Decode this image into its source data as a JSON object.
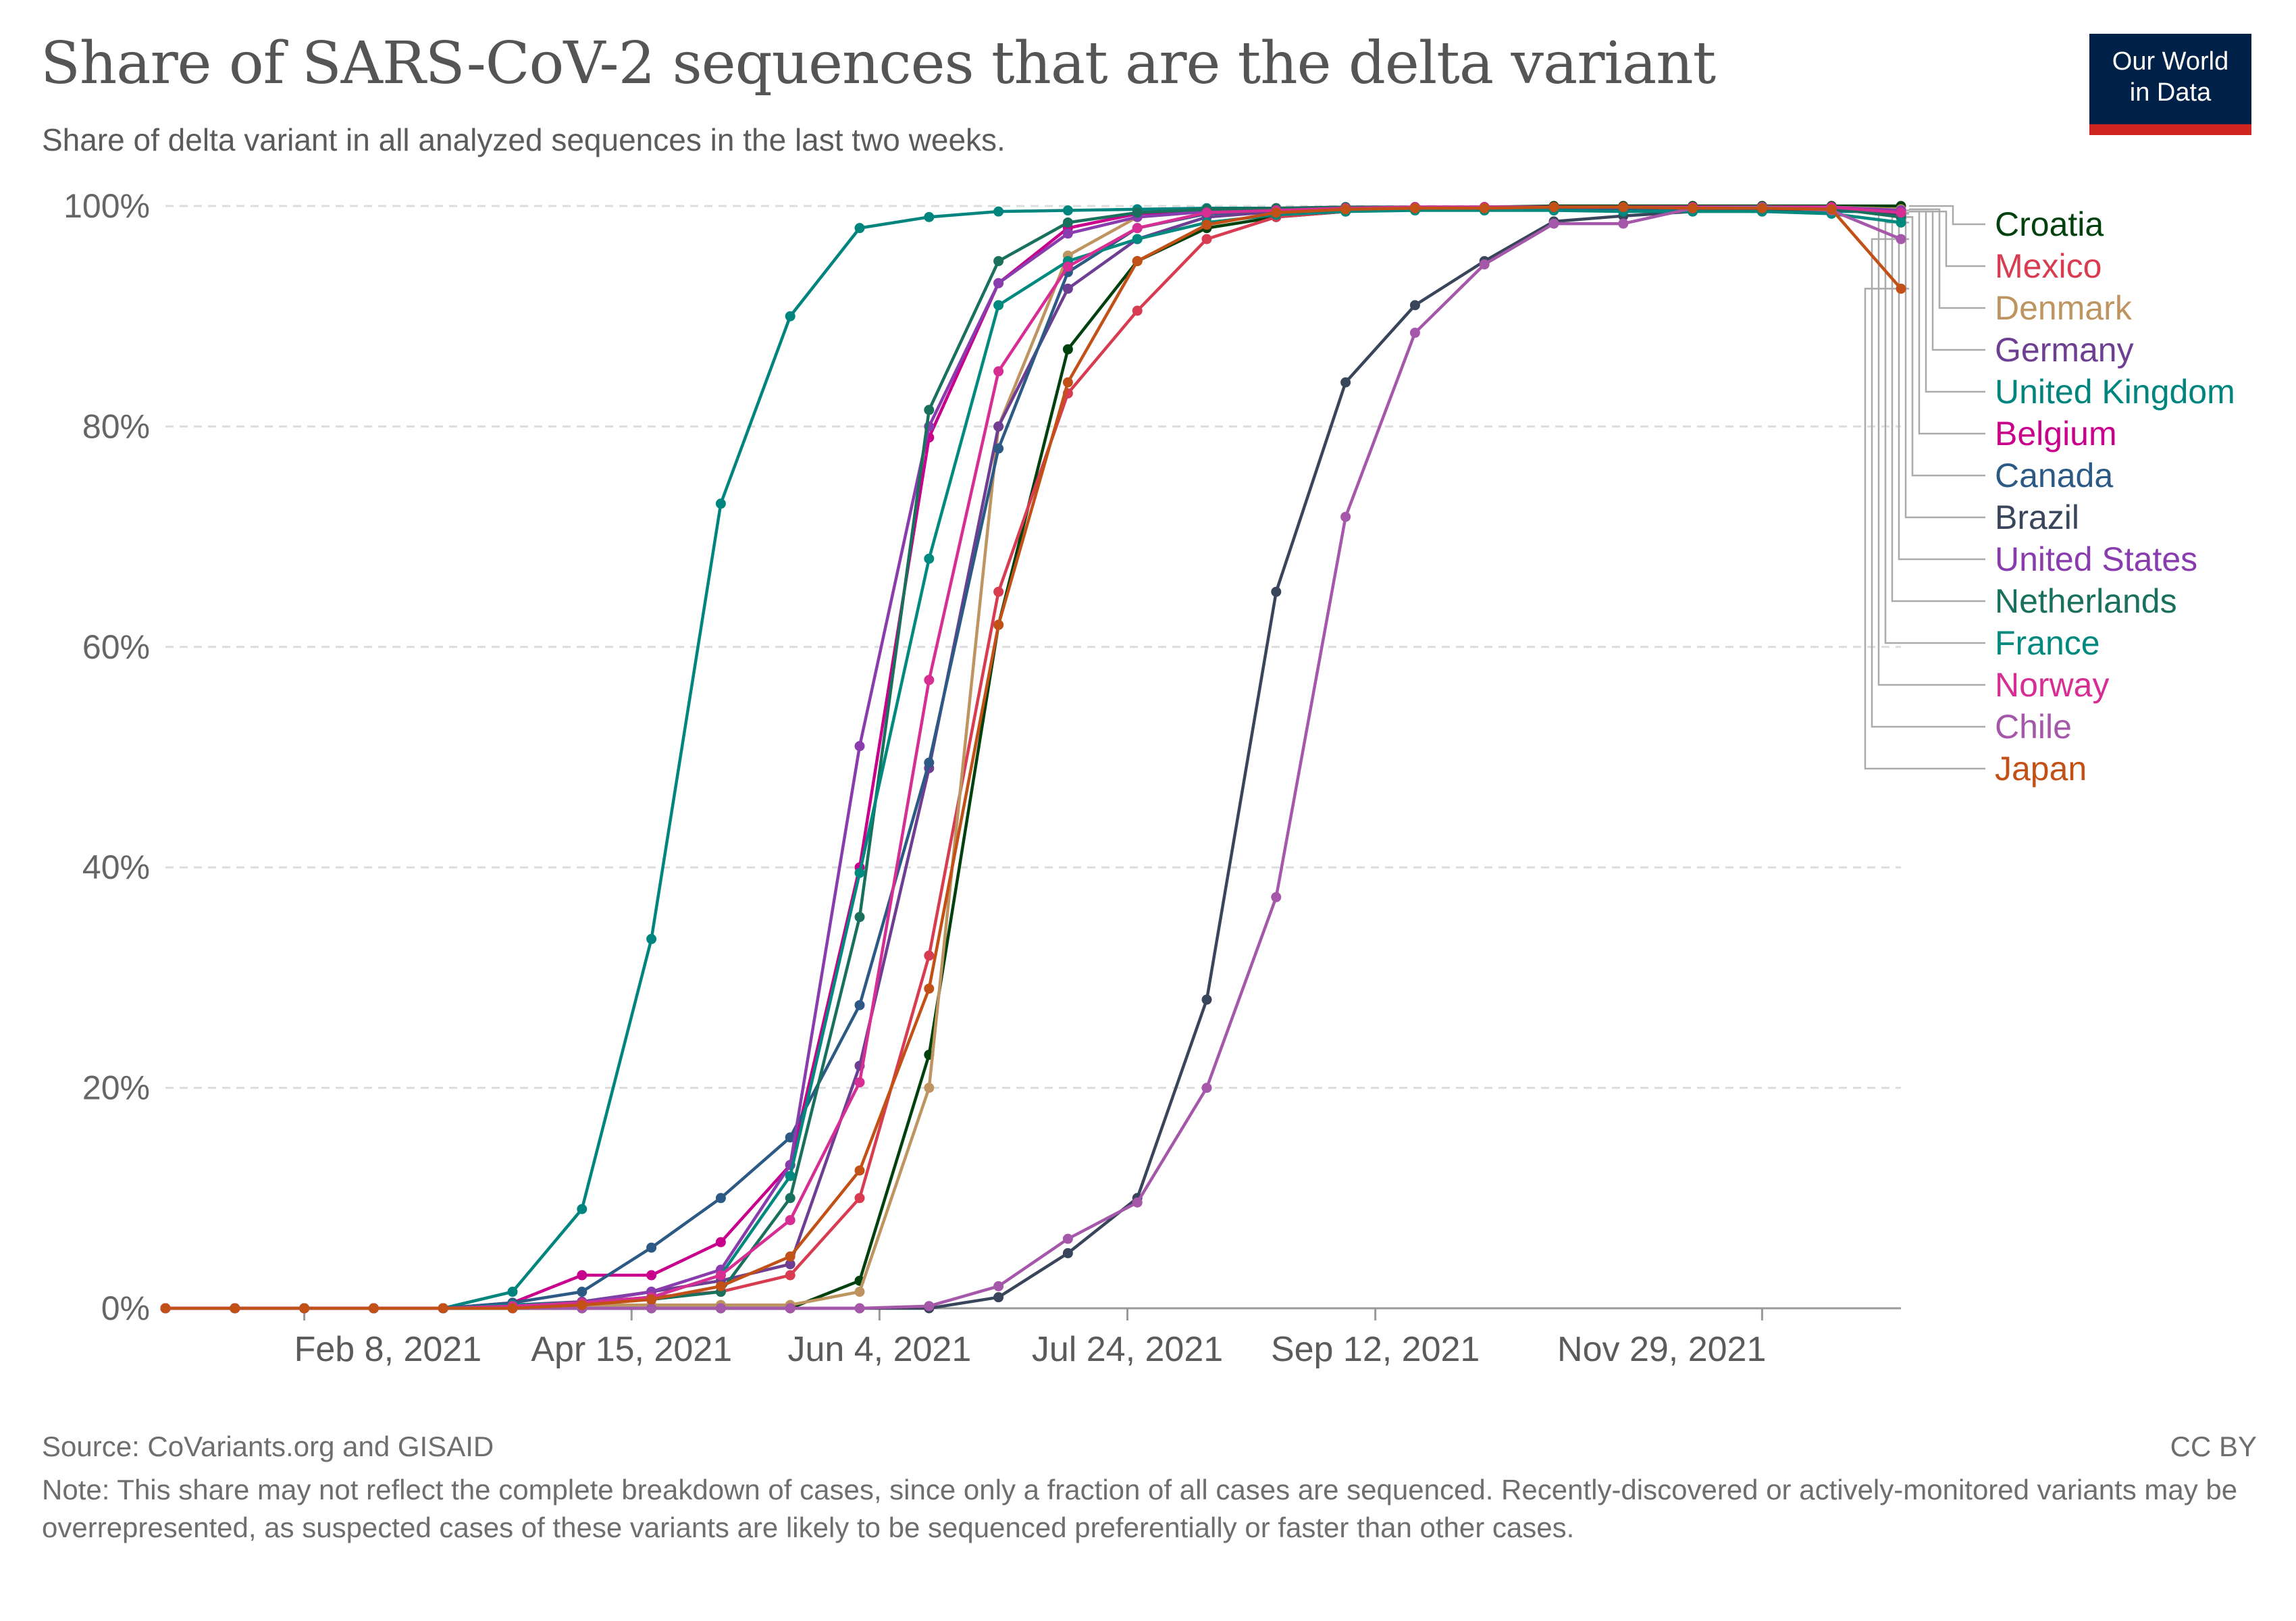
{
  "header": {
    "title": "Share of SARS-CoV-2 sequences that are the delta variant",
    "subtitle": "Share of delta variant in all analyzed sequences in the last two weeks.",
    "logo_line1": "Our World",
    "logo_line2": "in Data"
  },
  "footer": {
    "source": "Source: CoVariants.org and GISAID",
    "license": "CC BY",
    "note": "Note: This share may not reflect the complete breakdown of cases, since only a fraction of all cases are sequenced. Recently-discovered or actively-monitored variants may be overrepresented, as suspected cases of these variants are likely to be sequenced preferentially or faster than other cases."
  },
  "colors": {
    "grid": "#dddddd",
    "axis_text": "#666666",
    "logo_bg": "#002147",
    "logo_accent": "#ce261e"
  },
  "chart_data": {
    "type": "line",
    "title": "Share of SARS-CoV-2 sequences that are the delta variant",
    "xlabel": "",
    "ylabel": "",
    "x": [
      "2021-01-11",
      "2021-01-25",
      "2021-02-08",
      "2021-02-22",
      "2021-03-08",
      "2021-03-22",
      "2021-04-05",
      "2021-04-19",
      "2021-05-03",
      "2021-05-17",
      "2021-05-31",
      "2021-06-14",
      "2021-06-28",
      "2021-07-12",
      "2021-07-26",
      "2021-08-09",
      "2021-08-23",
      "2021-09-06",
      "2021-09-20",
      "2021-10-04",
      "2021-10-18",
      "2021-11-01",
      "2021-11-15",
      "2021-11-29",
      "2021-12-13",
      "2021-12-27"
    ],
    "x_ticks": [
      "Feb 8, 2021",
      "Apr 15, 2021",
      "Jun 4, 2021",
      "Jul 24, 2021",
      "Sep 12, 2021",
      "Nov 29, 2021"
    ],
    "y_ticks": [
      "0%",
      "20%",
      "40%",
      "60%",
      "80%",
      "100%"
    ],
    "ylim": [
      0,
      100
    ],
    "unit": "%",
    "grid": true,
    "legend_position": "right",
    "series": [
      {
        "name": "Croatia",
        "color": "#00410d",
        "values": [
          0,
          0,
          0,
          0,
          0,
          0,
          0,
          0,
          0,
          0,
          2.5,
          23,
          62,
          87,
          95,
          98,
          99,
          99.5,
          99.8,
          99.9,
          100,
          100,
          100,
          100,
          100,
          100
        ]
      },
      {
        "name": "Mexico",
        "color": "#d73c50",
        "values": [
          0,
          0,
          0,
          0,
          0,
          0.3,
          0.5,
          1,
          1.5,
          3,
          10,
          32,
          65,
          83,
          90.5,
          97,
          99,
          99.5,
          99.8,
          99.9,
          99.9,
          99.9,
          99.9,
          99.9,
          99.9,
          99.5
        ]
      },
      {
        "name": "Denmark",
        "color": "#be9460",
        "values": [
          0,
          0,
          0,
          0,
          0,
          0.3,
          0.3,
          0.3,
          0.3,
          0.3,
          1.5,
          20,
          80,
          95.5,
          99,
          99.5,
          99.7,
          99.8,
          99.9,
          99.9,
          99.9,
          99.9,
          99.9,
          99.9,
          99.9,
          99.7
        ]
      },
      {
        "name": "Germany",
        "color": "#6d3e91",
        "values": [
          0,
          0,
          0,
          0,
          0,
          0.3,
          0.6,
          1.5,
          2.5,
          4,
          22,
          49,
          80,
          92.5,
          97,
          99,
          99.5,
          99.7,
          99.8,
          99.9,
          99.9,
          99.9,
          99.9,
          99.9,
          99.9,
          99.5
        ]
      },
      {
        "name": "United Kingdom",
        "color": "#00847e",
        "values": [
          0,
          0,
          0,
          0,
          0,
          1.5,
          9,
          33.5,
          73,
          90,
          98,
          99,
          99.5,
          99.6,
          99.7,
          99.8,
          99.8,
          99.8,
          99.8,
          99.8,
          99.7,
          99.7,
          99.6,
          99.5,
          99.5,
          99.5
        ]
      },
      {
        "name": "Belgium",
        "color": "#c8008c",
        "values": [
          0,
          0,
          0,
          0,
          0,
          0.5,
          3,
          3,
          6,
          13,
          40,
          79,
          93,
          98,
          99.3,
          99.6,
          99.8,
          99.9,
          99.9,
          99.9,
          99.9,
          99.9,
          99.9,
          99.9,
          99.8,
          99.5
        ]
      },
      {
        "name": "Canada",
        "color": "#2c5a85",
        "values": [
          0,
          0,
          0,
          0,
          0,
          0.5,
          1.5,
          5.5,
          10,
          15.5,
          27.5,
          49.5,
          78,
          94,
          98,
          99.3,
          99.6,
          99.7,
          99.8,
          99.8,
          99.8,
          99.8,
          99.8,
          99.8,
          99.8,
          99.0
        ]
      },
      {
        "name": "Brazil",
        "color": "#38455a",
        "values": [
          0,
          0,
          0,
          0,
          0,
          0,
          0,
          0,
          0,
          0,
          0,
          0,
          1,
          5,
          10,
          28,
          65,
          84,
          91,
          95,
          98.6,
          99.1,
          99.5,
          99.7,
          99.7,
          99.3
        ]
      },
      {
        "name": "United States",
        "color": "#883cae",
        "values": [
          0,
          0,
          0,
          0,
          0,
          0.3,
          0.5,
          1.5,
          3.5,
          13,
          51,
          80,
          93,
          97.5,
          99,
          99.5,
          99.7,
          99.8,
          99.9,
          99.9,
          99.9,
          99.9,
          99.9,
          99.9,
          99.9,
          99.6
        ]
      },
      {
        "name": "Netherlands",
        "color": "#18705d",
        "values": [
          0,
          0,
          0,
          0,
          0,
          0.2,
          0.4,
          0.8,
          1.5,
          10,
          35.5,
          81.5,
          95,
          98.5,
          99.4,
          99.7,
          99.8,
          99.9,
          99.9,
          99.9,
          99.9,
          99.9,
          99.9,
          99.9,
          99.8,
          99.0
        ]
      },
      {
        "name": "France",
        "color": "#00897e",
        "values": [
          0,
          0,
          0,
          0,
          0,
          0.3,
          0.5,
          1,
          3,
          12,
          39.5,
          68,
          91,
          95,
          97,
          98.5,
          99.2,
          99.5,
          99.6,
          99.6,
          99.6,
          99.5,
          99.5,
          99.5,
          99.3,
          98.5
        ]
      },
      {
        "name": "Norway",
        "color": "#d62e93",
        "values": [
          0,
          0,
          0,
          0,
          0,
          0.2,
          0.5,
          1,
          3,
          8,
          20.5,
          57,
          85,
          94.5,
          98,
          99.4,
          99.6,
          99.8,
          99.9,
          99.9,
          99.9,
          99.9,
          99.9,
          99.9,
          99.9,
          99.4
        ]
      },
      {
        "name": "Chile",
        "color": "#a557a9",
        "values": [
          0,
          0,
          0,
          0,
          0,
          0,
          0,
          0,
          0,
          0,
          0,
          0.2,
          2,
          6.3,
          9.6,
          20,
          37.3,
          71.8,
          88.5,
          94.7,
          98.4,
          98.4,
          99.8,
          99.9,
          99.6,
          97.0
        ]
      },
      {
        "name": "Japan",
        "color": "#c15116",
        "values": [
          0,
          0,
          0,
          0,
          0,
          0,
          0.3,
          0.8,
          2,
          4.7,
          12.5,
          29,
          62,
          84,
          95,
          98.3,
          99.4,
          99.7,
          99.8,
          99.8,
          99.9,
          99.9,
          99.8,
          99.8,
          99.7,
          92.5
        ]
      }
    ]
  }
}
